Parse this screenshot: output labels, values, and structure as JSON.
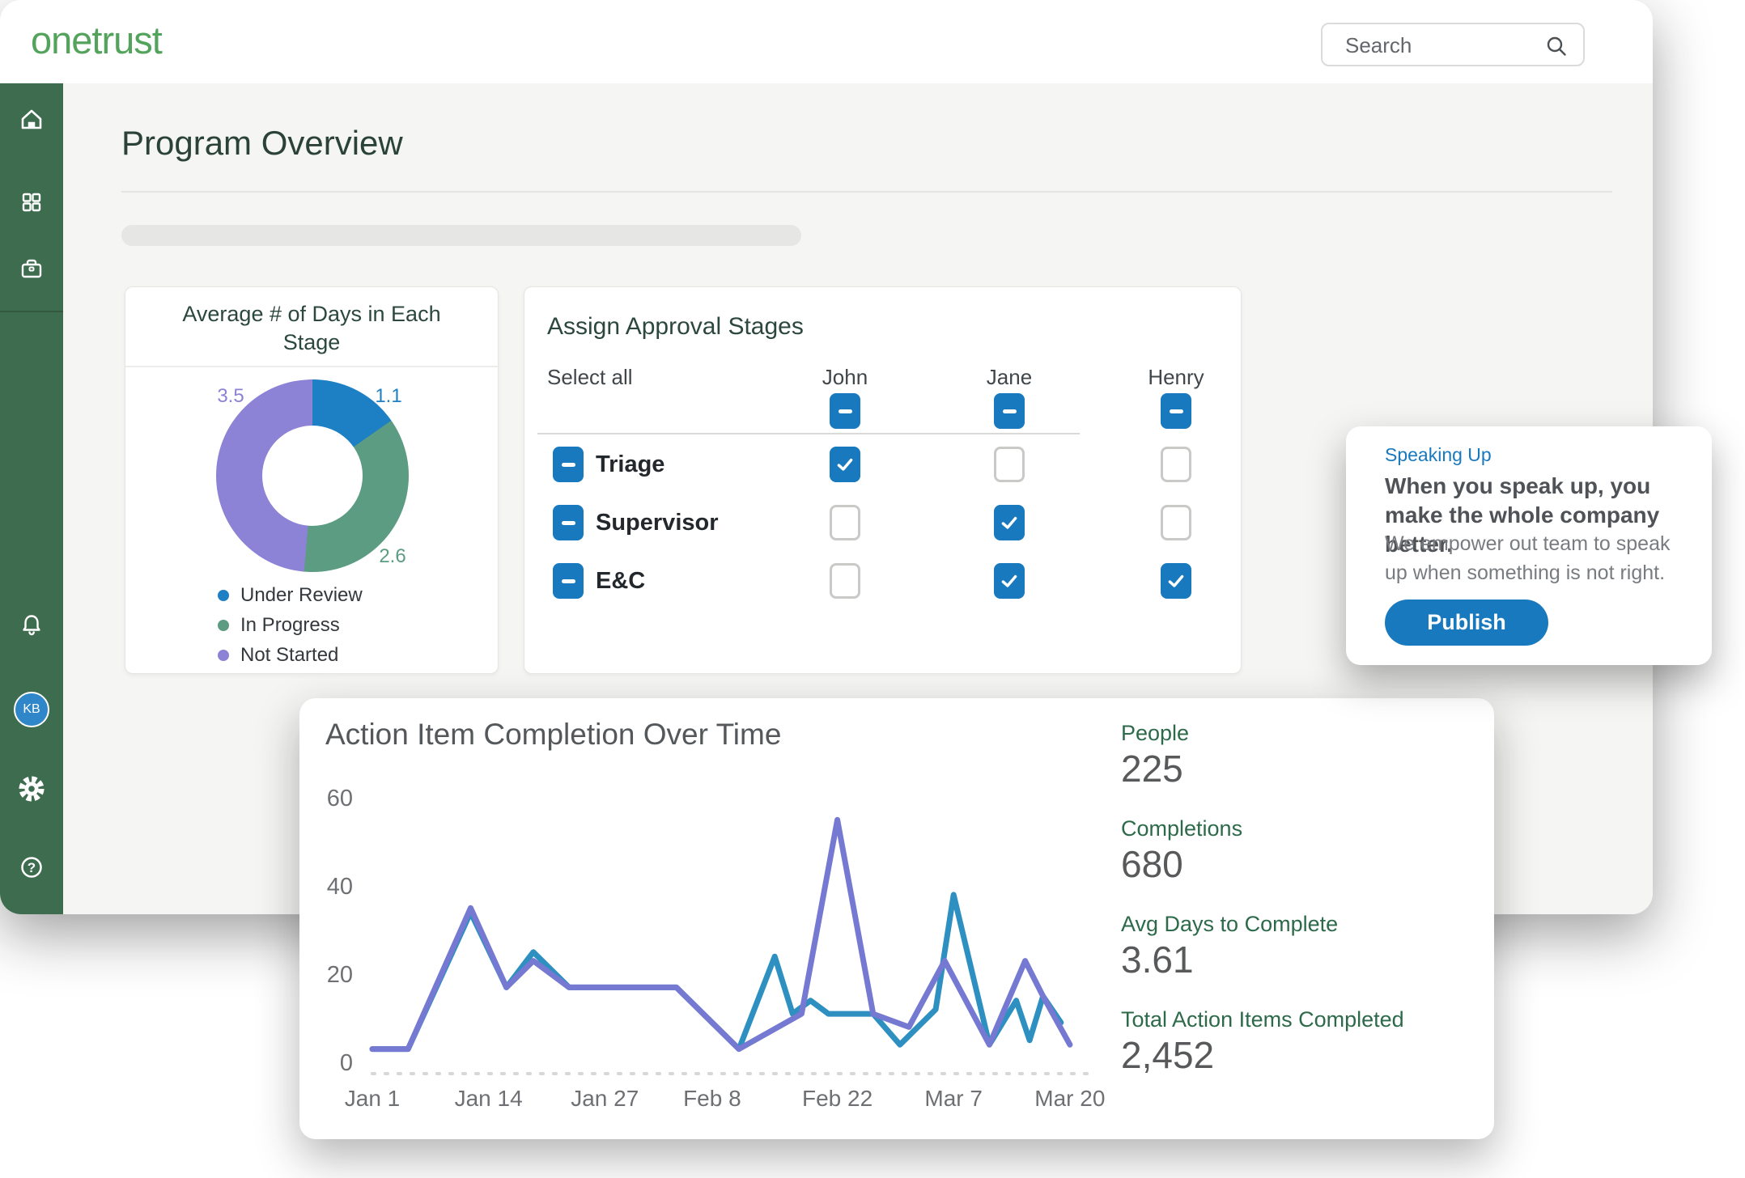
{
  "topbar": {
    "logo_text": "onetrust",
    "search_placeholder": "Search"
  },
  "sidebar": {
    "avatar_initials": "KB"
  },
  "page": {
    "title": "Program Overview"
  },
  "donut_card": {
    "title": "Average # of Days in Each Stage",
    "slice_labels": {
      "under_review": "1.1",
      "in_progress": "2.6",
      "not_started": "3.5"
    },
    "legend": [
      "Under Review",
      "In Progress",
      "Not Started"
    ]
  },
  "approval_card": {
    "title": "Assign Approval Stages",
    "select_all_label": "Select all",
    "columns": [
      "John",
      "Jane",
      "Henry"
    ],
    "header_boxes": [
      "ind",
      "ind",
      "ind"
    ],
    "rows": [
      {
        "label": "Triage",
        "row_box": "ind",
        "boxes": [
          "checked",
          "unchecked",
          "unchecked"
        ]
      },
      {
        "label": "Supervisor",
        "row_box": "ind",
        "boxes": [
          "unchecked",
          "checked",
          "unchecked"
        ]
      },
      {
        "label": "E&C",
        "row_box": "ind",
        "boxes": [
          "unchecked",
          "checked",
          "checked"
        ]
      }
    ]
  },
  "speaking_card": {
    "tag": "Speaking Up",
    "heading": "When you speak up, you make the whole company better.",
    "body": "We empower out team to speak up when something is not right.",
    "button_label": "Publish"
  },
  "chart_card": {
    "title": "Action Item Completion Over Time",
    "stats": [
      {
        "label": "People",
        "value": "225"
      },
      {
        "label": "Completions",
        "value": "680"
      },
      {
        "label": "Avg Days to Complete",
        "value": "3.61"
      },
      {
        "label": "Total Action Items Completed",
        "value": "2,452"
      }
    ]
  },
  "chart_data": [
    {
      "type": "pie",
      "donut": true,
      "title": "Average # of Days in Each Stage",
      "labels": [
        "Under Review",
        "In Progress",
        "Not Started"
      ],
      "values": [
        1.1,
        2.6,
        3.5
      ],
      "colors": [
        "#1D7FC4",
        "#5B9C82",
        "#8C82D6"
      ],
      "legend_position": "bottom-left"
    },
    {
      "type": "line",
      "title": "Action Item Completion Over Time",
      "x_tick_labels": [
        "Jan 1",
        "Jan 14",
        "Jan 27",
        "Feb 8",
        "Feb 22",
        "Mar 7",
        "Mar 20"
      ],
      "x_tick_days": [
        0,
        13,
        26,
        38,
        52,
        65,
        78
      ],
      "x_domain": [
        0,
        81
      ],
      "y_ticks": [
        0,
        20,
        40,
        60
      ],
      "ylim": [
        0,
        60
      ],
      "grid": "dotted-zero-baseline-only",
      "legend": "none",
      "series": [
        {
          "name": "teal-line",
          "color": "#2E90C1",
          "points": [
            [
              0,
              3
            ],
            [
              4,
              3
            ],
            [
              11,
              34
            ],
            [
              15,
              17
            ],
            [
              18,
              25
            ],
            [
              22,
              17
            ],
            [
              34,
              17
            ],
            [
              41,
              3
            ],
            [
              45,
              24
            ],
            [
              47,
              11
            ],
            [
              49,
              14
            ],
            [
              51,
              11
            ],
            [
              56,
              11
            ],
            [
              59,
              4
            ],
            [
              63,
              12
            ],
            [
              65,
              38
            ],
            [
              69,
              4
            ],
            [
              72,
              14
            ],
            [
              73.5,
              5
            ],
            [
              75,
              15
            ],
            [
              77,
              9
            ]
          ]
        },
        {
          "name": "purple-line",
          "color": "#7579D1",
          "points": [
            [
              0,
              3
            ],
            [
              4,
              3
            ],
            [
              11,
              35
            ],
            [
              15,
              17
            ],
            [
              18,
              23
            ],
            [
              22,
              17
            ],
            [
              34,
              17
            ],
            [
              41,
              3
            ],
            [
              48,
              11
            ],
            [
              52,
              55
            ],
            [
              56,
              11
            ],
            [
              60,
              8
            ],
            [
              64,
              23
            ],
            [
              69,
              4
            ],
            [
              73,
              23
            ],
            [
              75,
              15
            ],
            [
              78,
              4
            ]
          ]
        }
      ]
    }
  ],
  "colors": {
    "sidebar_green": "#3E6C4F",
    "logo_green": "#53A35D",
    "checkbox_blue": "#1979BE",
    "button_blue": "#1979BE",
    "stat_label_green": "#2D6A4A",
    "avatar_blue": "#2F86C8"
  }
}
